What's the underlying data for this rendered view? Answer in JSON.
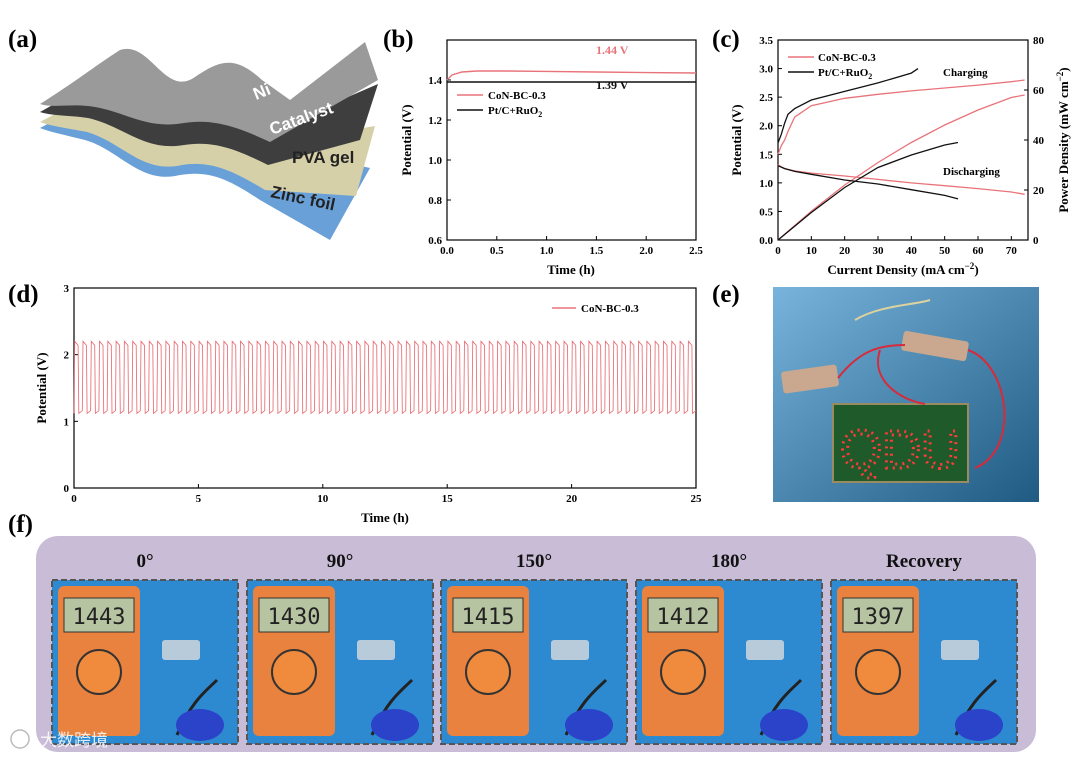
{
  "panels": {
    "a": "(a)",
    "b": "(b)",
    "c": "(c)",
    "d": "(d)",
    "e": "(e)",
    "f": "(f)"
  },
  "layers": [
    "Ni foam",
    "Catalyst",
    "PVA gel",
    "Zinc foil"
  ],
  "colors": {
    "red": "#e8747a",
    "black": "#111111",
    "panel_bg": "#c8bcd6",
    "photo_blue": "#2f8bc8"
  },
  "chart_data": [
    {
      "id": "b",
      "type": "line",
      "xlabel": "Time (h)",
      "ylabel": "Potential (V)",
      "xlim": [
        0,
        2.5
      ],
      "ylim": [
        0.6,
        1.6
      ],
      "xticks": [
        "0.0",
        "0.5",
        "1.0",
        "1.5",
        "2.0",
        "2.5"
      ],
      "yticks": [
        "0.6",
        "0.8",
        "1.0",
        "1.2",
        "1.4"
      ],
      "series": [
        {
          "name": "CoN-BC-0.3",
          "color": "#e8747a",
          "x": [
            0,
            0.05,
            0.15,
            0.3,
            0.6,
            1.0,
            1.5,
            2.0,
            2.5
          ],
          "y": [
            1.4,
            1.425,
            1.44,
            1.445,
            1.445,
            1.443,
            1.44,
            1.437,
            1.435
          ]
        },
        {
          "name": "Pt/C+RuO2",
          "color": "#111111",
          "x": [
            0,
            0.5,
            1.0,
            1.5,
            2.0,
            2.5
          ],
          "y": [
            1.39,
            1.39,
            1.39,
            1.39,
            1.39,
            1.39
          ]
        }
      ],
      "annotations": [
        "1.44 V",
        "1.39 V"
      ]
    },
    {
      "id": "c",
      "type": "line",
      "xlabel": "Current Density (mA cm⁻²)",
      "ylabel": "Potential (V)",
      "y2label": "Power Density (mW cm⁻²)",
      "xlim": [
        0,
        75
      ],
      "ylim": [
        0,
        3.5
      ],
      "y2lim": [
        0,
        80
      ],
      "xticks": [
        "0",
        "10",
        "20",
        "30",
        "40",
        "50",
        "60",
        "70"
      ],
      "yticks": [
        "0.0",
        "0.5",
        "1.0",
        "1.5",
        "2.0",
        "2.5",
        "3.0",
        "3.5"
      ],
      "y2ticks": [
        "0",
        "20",
        "40",
        "60",
        "80"
      ],
      "series": [
        {
          "name": "CoN-BC-0.3",
          "color": "#e8747a",
          "label": "charge",
          "x": [
            0,
            1,
            2,
            3,
            5,
            10,
            20,
            30,
            40,
            50,
            60,
            70,
            74
          ],
          "y": [
            1.5,
            1.65,
            1.75,
            1.9,
            2.15,
            2.35,
            2.48,
            2.55,
            2.61,
            2.66,
            2.71,
            2.77,
            2.8
          ]
        },
        {
          "name": "CoN-BC-0.3",
          "color": "#e8747a",
          "label": "discharge",
          "x": [
            0,
            1,
            2,
            5,
            10,
            20,
            30,
            40,
            50,
            60,
            70,
            74
          ],
          "y": [
            1.32,
            1.28,
            1.25,
            1.21,
            1.17,
            1.12,
            1.06,
            1.0,
            0.95,
            0.9,
            0.84,
            0.8
          ]
        },
        {
          "name": "CoN-BC-0.3",
          "color": "#e8747a",
          "label": "power",
          "x": [
            0,
            10,
            20,
            30,
            40,
            50,
            60,
            70,
            74
          ],
          "y2": [
            0,
            11.5,
            22,
            31,
            39,
            46,
            52,
            57,
            58
          ]
        },
        {
          "name": "Pt/C+RuO2",
          "color": "#111111",
          "label": "charge",
          "x": [
            0,
            1,
            2,
            3,
            5,
            10,
            20,
            30,
            40,
            42
          ],
          "y": [
            1.7,
            1.85,
            2.05,
            2.2,
            2.3,
            2.45,
            2.6,
            2.75,
            2.92,
            3.0
          ]
        },
        {
          "name": "Pt/C+RuO2",
          "color": "#111111",
          "label": "discharge",
          "x": [
            0,
            2,
            5,
            10,
            20,
            30,
            40,
            50,
            54
          ],
          "y": [
            1.3,
            1.25,
            1.2,
            1.15,
            1.05,
            0.98,
            0.88,
            0.78,
            0.72
          ]
        },
        {
          "name": "Pt/C+RuO2",
          "color": "#111111",
          "label": "power",
          "x": [
            0,
            10,
            20,
            30,
            40,
            50,
            54
          ],
          "y2": [
            0,
            11,
            21,
            29,
            34,
            38,
            39
          ]
        }
      ],
      "annotations": [
        "Charging",
        "Discharging"
      ]
    },
    {
      "id": "d",
      "type": "line",
      "xlabel": "Time (h)",
      "ylabel": "Potential (V)",
      "xlim": [
        0,
        25
      ],
      "ylim": [
        0,
        3
      ],
      "xticks": [
        "0",
        "5",
        "10",
        "15",
        "20",
        "25"
      ],
      "yticks": [
        "0",
        "1",
        "2",
        "3"
      ],
      "series": [
        {
          "name": "CoN-BC-0.3",
          "color": "#e8747a",
          "cycles": 75,
          "charge_V": 2.2,
          "discharge_V": 1.12
        }
      ]
    }
  ],
  "photo_e": {
    "letters": "QDU"
  },
  "photo_f": {
    "angles": [
      "0°",
      "90°",
      "150°",
      "180°",
      "Recovery"
    ],
    "readings": [
      "1443",
      "1430",
      "1415",
      "1412",
      "1397"
    ]
  },
  "watermark": "大数跨境"
}
